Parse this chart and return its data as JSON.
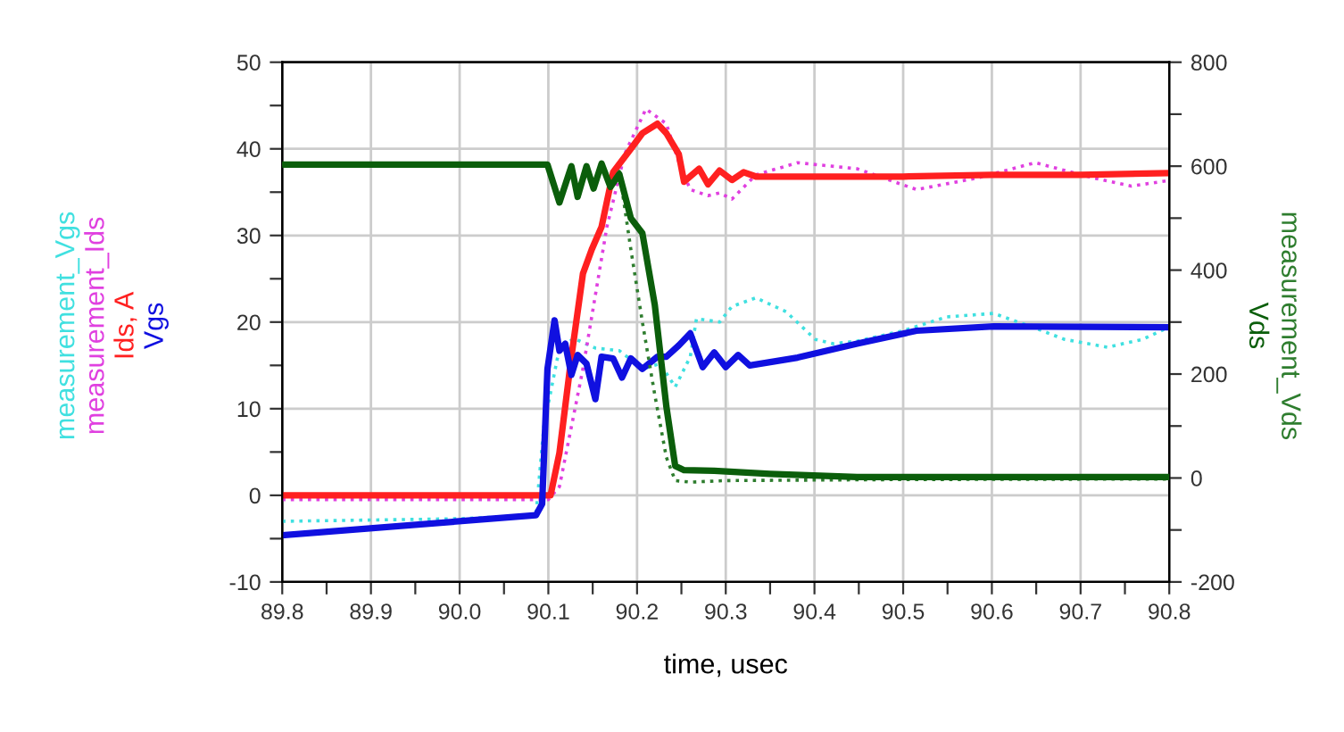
{
  "chart_data": {
    "type": "line",
    "xlabel": "time, usec",
    "xlim": [
      89.8,
      90.8
    ],
    "ylim": [
      -10,
      50
    ],
    "y2lim": [
      -200,
      800
    ],
    "xticks": [
      89.8,
      {
        "value": 89.85,
        "label": null
      },
      89.9,
      {
        "value": 89.95,
        "label": null
      },
      {
        "value": 90,
        "label": "90.0"
      },
      {
        "value": 90.05,
        "label": null
      },
      90.1,
      {
        "value": 90.15,
        "label": null
      },
      90.2,
      {
        "value": 90.25,
        "label": null
      },
      90.3,
      {
        "value": 90.35,
        "label": null
      },
      90.4,
      {
        "value": 90.45,
        "label": null
      },
      90.5,
      {
        "value": 90.55,
        "label": null
      },
      90.6,
      {
        "value": 90.65,
        "label": null
      },
      90.7,
      {
        "value": 90.75,
        "label": null
      },
      90.8
    ],
    "yticks": [
      -10,
      {
        "value": -5,
        "label": null
      },
      0,
      {
        "value": 5,
        "label": null
      },
      10,
      {
        "value": 15,
        "label": null
      },
      20,
      {
        "value": 25,
        "label": null
      },
      30,
      {
        "value": 35,
        "label": null
      },
      40,
      {
        "value": 45,
        "label": null
      },
      50
    ],
    "y2ticks": [
      -200,
      {
        "value": -100,
        "label": null
      },
      0,
      {
        "value": 100,
        "label": null
      },
      200,
      {
        "value": 300,
        "label": null
      },
      400,
      {
        "value": 500,
        "label": null
      },
      600,
      {
        "value": 700,
        "label": null
      },
      800
    ],
    "grid": true,
    "legend": false,
    "marker": "none",
    "series": [
      {
        "name": "measurement_Vgs",
        "color": "#40e0e0",
        "line_style": "dotted",
        "x": [
          89.8,
          90.0,
          90.086,
          90.095,
          90.1125,
          90.129,
          90.153,
          90.18,
          90.206,
          90.226,
          90.243,
          90.26,
          90.267,
          90.293,
          90.307,
          90.334,
          90.368,
          90.401,
          90.421,
          90.448,
          90.5,
          90.549,
          90.602,
          90.649,
          90.682,
          90.73,
          90.77,
          90.797
        ],
        "values": [
          -3.0,
          -2.7,
          -2.3,
          8.0,
          17.0,
          18.1,
          17.0,
          16.7,
          14.6,
          15.2,
          12.5,
          16.0,
          20.4,
          20.0,
          21.8,
          22.8,
          21.2,
          18.0,
          17.5,
          17.8,
          19.0,
          20.6,
          21.0,
          19.3,
          18.0,
          17.1,
          18.0,
          19.3
        ]
      },
      {
        "name": "measurement_Ids",
        "color": "#e040e0",
        "line_style": "dotted",
        "x": [
          89.8,
          90.0,
          90.1,
          90.1125,
          90.139,
          90.166,
          90.186,
          90.21,
          90.233,
          90.247,
          90.26,
          90.28,
          90.293,
          90.307,
          90.334,
          90.381,
          90.448,
          90.515,
          90.582,
          90.649,
          90.716,
          90.757,
          90.797
        ],
        "values": [
          -0.5,
          -0.5,
          -0.5,
          1.0,
          14.6,
          31.0,
          39.4,
          44.6,
          42.9,
          38.5,
          35.3,
          34.6,
          34.9,
          34.2,
          37.0,
          38.4,
          37.7,
          35.3,
          36.6,
          38.4,
          36.6,
          35.7,
          36.3
        ]
      },
      {
        "name": "Ids, A",
        "color": "#ff2020",
        "line_style": "solid",
        "x": [
          89.8,
          90.0,
          90.1025,
          90.1125,
          90.126,
          90.139,
          90.149,
          90.16,
          90.173,
          90.193,
          90.206,
          90.223,
          90.233,
          90.247,
          90.253,
          90.27,
          90.28,
          90.293,
          90.307,
          90.32,
          90.334,
          90.4,
          90.5,
          90.6,
          90.7,
          90.8
        ],
        "values": [
          0,
          0,
          0,
          4.9,
          16.0,
          25.6,
          28.4,
          31.0,
          37.3,
          40.0,
          41.8,
          42.9,
          41.8,
          39.4,
          36.2,
          37.7,
          35.9,
          37.5,
          36.4,
          37.3,
          36.8,
          36.8,
          36.8,
          37.0,
          37.0,
          37.2
        ]
      },
      {
        "name": "Vgs",
        "color": "#1010e0",
        "line_style": "solid",
        "x": [
          89.8,
          90.086,
          90.093,
          90.099,
          90.107,
          90.1125,
          90.119,
          90.126,
          90.133,
          90.143,
          90.153,
          90.16,
          90.173,
          90.183,
          90.193,
          90.206,
          90.223,
          90.233,
          90.247,
          90.26,
          90.274,
          90.287,
          90.3,
          90.314,
          90.327,
          90.381,
          90.448,
          90.515,
          90.602,
          90.797
        ],
        "values": [
          -4.6,
          -2.3,
          -1.0,
          14.6,
          20.2,
          16.7,
          17.5,
          13.9,
          16.2,
          15.2,
          11.1,
          16.0,
          15.8,
          13.6,
          15.8,
          14.6,
          16.0,
          16.0,
          17.3,
          18.7,
          14.8,
          16.5,
          14.8,
          16.2,
          15.0,
          15.9,
          17.5,
          19.0,
          19.5,
          19.4
        ]
      },
      {
        "name": "measurement_Vds",
        "color": "#2e7d2e",
        "line_style": "dotted",
        "axis": "y2",
        "x": [
          89.8,
          90.0,
          90.099,
          90.1125,
          90.126,
          90.133,
          90.143,
          90.151,
          90.16,
          90.17,
          90.18,
          90.193,
          90.206,
          90.22,
          90.233,
          90.243,
          90.26,
          90.3,
          90.5,
          90.8
        ],
        "values": [
          603,
          605,
          605,
          535,
          600,
          545,
          600,
          560,
          600,
          565,
          590,
          440,
          300,
          160,
          40,
          -5,
          -8,
          -5,
          -3,
          -2
        ]
      },
      {
        "name": "Vds",
        "color": "#0b5e0b",
        "line_style": "solid",
        "axis": "y2",
        "x": [
          89.8,
          90.0,
          90.099,
          90.1125,
          90.126,
          90.133,
          90.143,
          90.151,
          90.16,
          90.17,
          90.18,
          90.193,
          90.206,
          90.22,
          90.233,
          90.243,
          90.253,
          90.287,
          90.35,
          90.448,
          90.6,
          90.8
        ],
        "values": [
          603,
          603,
          603,
          530,
          600,
          541,
          600,
          557,
          605,
          560,
          585,
          500,
          471,
          333,
          138,
          23,
          15,
          14,
          8,
          2,
          2,
          2
        ]
      }
    ]
  }
}
